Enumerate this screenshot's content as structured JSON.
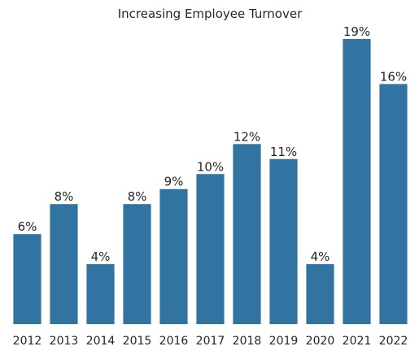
{
  "chart_data": {
    "type": "bar",
    "title": "Increasing Employee Turnover",
    "xlabel": "",
    "ylabel": "",
    "categories": [
      "2012",
      "2013",
      "2014",
      "2015",
      "2016",
      "2017",
      "2018",
      "2019",
      "2020",
      "2021",
      "2022"
    ],
    "values": [
      6,
      8,
      4,
      8,
      9,
      10,
      12,
      11,
      4,
      19,
      16
    ],
    "labels": [
      "6%",
      "8%",
      "4%",
      "8%",
      "9%",
      "10%",
      "12%",
      "11%",
      "4%",
      "19%",
      "16%"
    ],
    "ylim": [
      0,
      19
    ],
    "grid": false,
    "bar_color": "#3274a1"
  }
}
